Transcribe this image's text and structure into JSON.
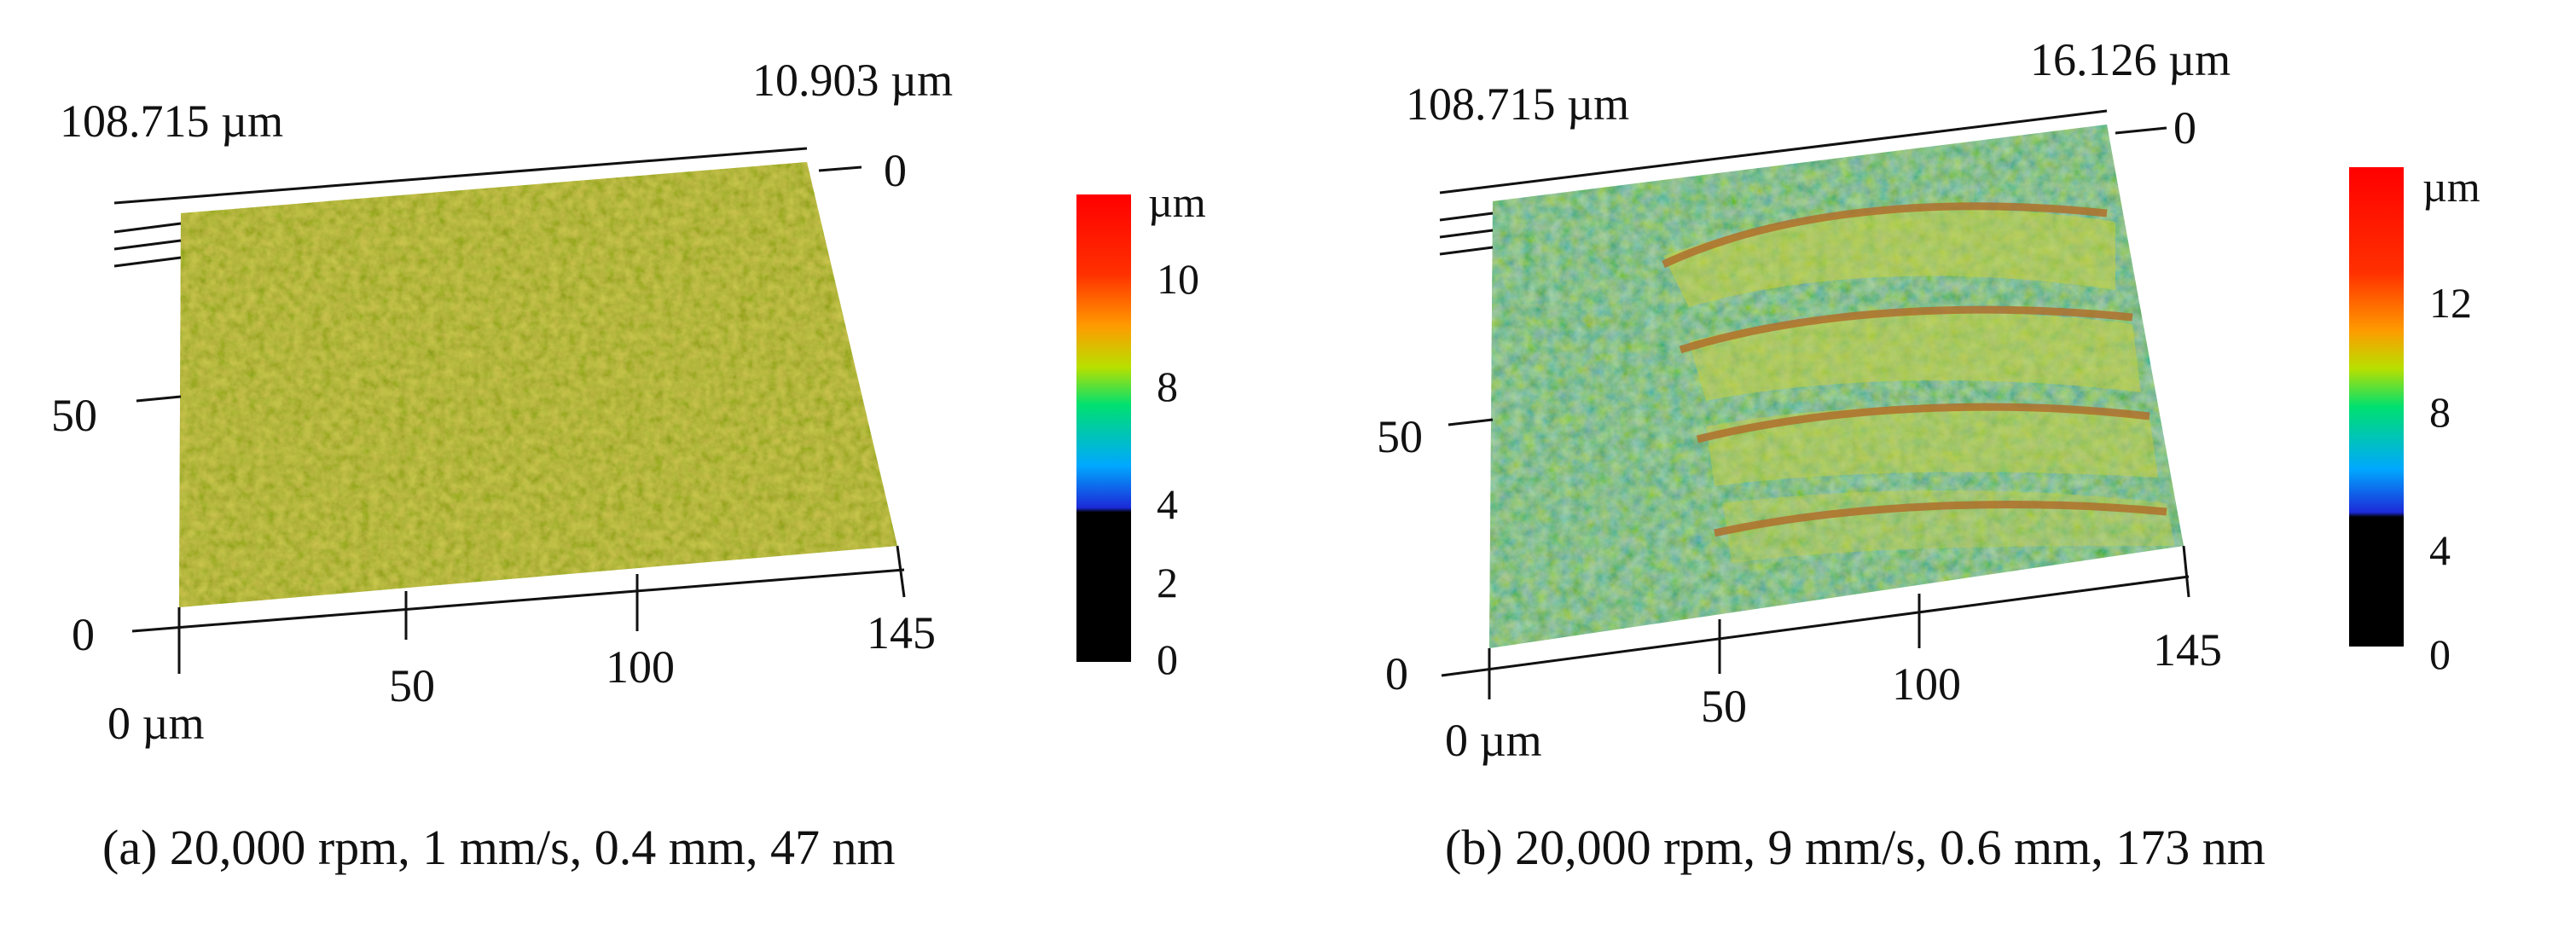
{
  "panels": [
    {
      "id": "a",
      "y_extent": "108.715 µm",
      "z_extent": "10.903 µm",
      "z_zero": "0",
      "y_tick": "50",
      "origin_y_tick": "0",
      "x_unit_label": "0 µm",
      "x_ticks": [
        "50",
        "100",
        "145"
      ],
      "colorbar": {
        "unit": "µm",
        "ticks": [
          "10",
          "8",
          "4",
          "2",
          "0"
        ]
      },
      "caption": "(a) 20,000 rpm, 1 mm/s, 0.4 mm, 47 nm"
    },
    {
      "id": "b",
      "y_extent": "108.715 µm",
      "z_extent": "16.126 µm",
      "z_zero": "0",
      "y_tick": "50",
      "origin_y_tick": "0",
      "x_unit_label": "0 µm",
      "x_ticks": [
        "50",
        "100",
        "145"
      ],
      "colorbar": {
        "unit": "µm",
        "ticks": [
          "12",
          "8",
          "4",
          "0"
        ]
      },
      "caption": "(b) 20,000 rpm, 9 mm/s, 0.6 mm, 173 nm"
    }
  ],
  "colors": {
    "surface_base_a": "#a8b83a",
    "surface_base_b": "#5bbf5a",
    "groove": "#b07830",
    "colorbar": [
      "#000000",
      "#0000cc",
      "#00c0ff",
      "#00e060",
      "#c0e000",
      "#ff8000",
      "#ff0000"
    ]
  }
}
